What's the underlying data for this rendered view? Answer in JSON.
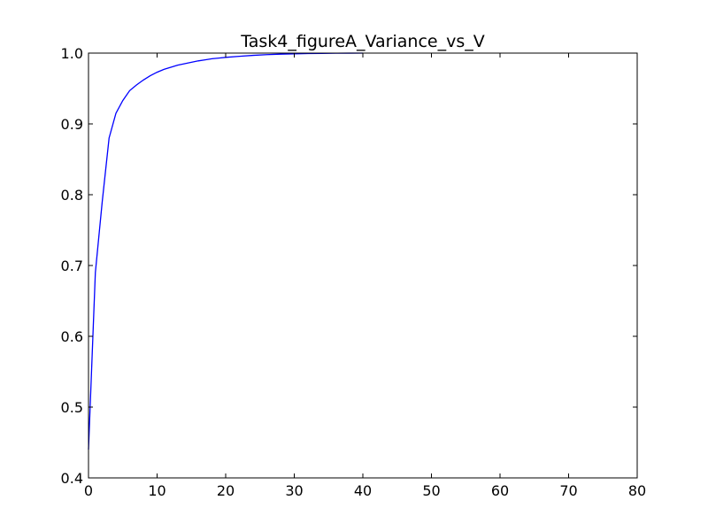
{
  "chart_data": {
    "type": "line",
    "title": "Task4_figureA_Variance_vs_V",
    "xlabel": "",
    "ylabel": "",
    "xlim": [
      0,
      80
    ],
    "ylim": [
      0.4,
      1.0
    ],
    "xticks": [
      0,
      10,
      20,
      30,
      40,
      50,
      60,
      70,
      80
    ],
    "yticks": [
      0.4,
      0.5,
      0.6,
      0.7,
      0.8,
      0.9,
      1.0
    ],
    "grid": false,
    "legend": "none",
    "series": [
      {
        "color": "#0000ff",
        "x": [
          0,
          1,
          2,
          3,
          4,
          5,
          6,
          7,
          8,
          9,
          10,
          11,
          12,
          13,
          14,
          15,
          16,
          17,
          18,
          19,
          20,
          22,
          24,
          26,
          28,
          30,
          32,
          34,
          36,
          38,
          40
        ],
        "y": [
          0.44,
          0.69,
          0.79,
          0.88,
          0.915,
          0.933,
          0.947,
          0.955,
          0.962,
          0.968,
          0.973,
          0.977,
          0.98,
          0.983,
          0.985,
          0.987,
          0.989,
          0.9905,
          0.992,
          0.993,
          0.994,
          0.9955,
          0.9968,
          0.9978,
          0.9985,
          0.999,
          0.9994,
          0.9996,
          0.9998,
          0.9999,
          1.0
        ]
      }
    ]
  }
}
